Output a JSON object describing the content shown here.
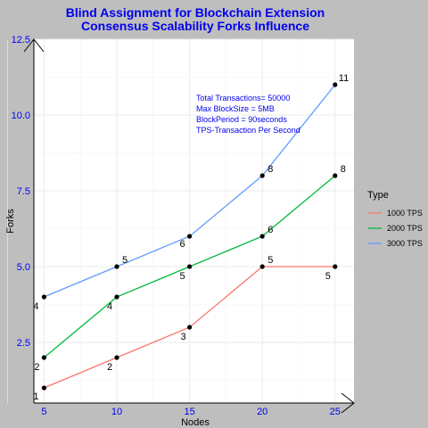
{
  "chart_data": {
    "type": "line",
    "title_lines": [
      "Blind Assignment for Blockchain Extension",
      "Consensus Scalability Forks Influence"
    ],
    "xlabel": "Nodes",
    "ylabel": "Forks",
    "x": [
      5,
      10,
      15,
      20,
      25
    ],
    "x_ticks": [
      "5",
      "10",
      "15",
      "20",
      "25"
    ],
    "y_ticks": [
      "2.5",
      "5.0",
      "7.5",
      "10.0",
      "12.5"
    ],
    "xlim": [
      4.3,
      26.3
    ],
    "ylim": [
      0.5,
      12.5
    ],
    "grid": true,
    "legend_position": "right",
    "legend_title": "Type",
    "annotations": [
      "Total Transactions= 50000",
      "Max BlockSize = 5MB",
      "BlockPeriod = 90seconds",
      "TPS-Transaction Per Second"
    ],
    "series": [
      {
        "name": "1000 TPS",
        "color": "#f8766d",
        "values": [
          1,
          2,
          3,
          5,
          5
        ],
        "labels": [
          "1",
          "2",
          "3",
          "5",
          "5"
        ]
      },
      {
        "name": "2000 TPS",
        "color": "#00ba38",
        "values": [
          2,
          4,
          5,
          6,
          8
        ],
        "labels": [
          "2",
          "4",
          "5",
          "6",
          "8"
        ]
      },
      {
        "name": "3000 TPS",
        "color": "#619cff",
        "values": [
          4,
          5,
          6,
          8,
          11
        ],
        "labels": [
          "4",
          "5",
          "6",
          "8",
          "11"
        ]
      }
    ]
  }
}
